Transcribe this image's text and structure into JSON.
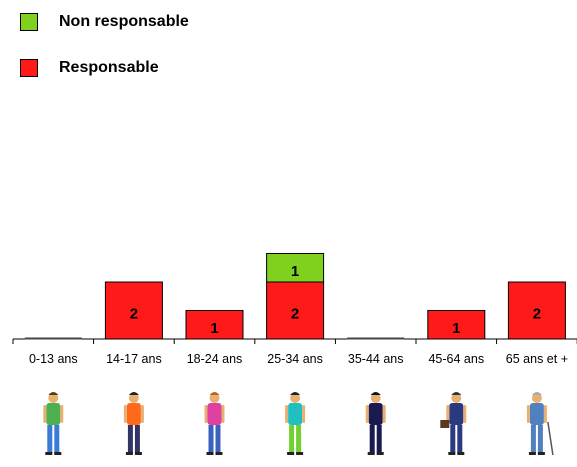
{
  "chart_data": {
    "type": "bar",
    "stacked": true,
    "categories": [
      "0-13 ans",
      "14-17 ans",
      "18-24 ans",
      "25-34 ans",
      "35-44 ans",
      "45-64 ans",
      "65 ans et +"
    ],
    "series": [
      {
        "name": "Responsable",
        "color": "#ff1a1a",
        "values": [
          0,
          2,
          1,
          2,
          0,
          1,
          2
        ]
      },
      {
        "name": "Non responsable",
        "color": "#80d020",
        "values": [
          0,
          0,
          0,
          1,
          0,
          0,
          0
        ]
      }
    ],
    "legend": "top-left",
    "grid": false
  },
  "legend_order": [
    "Non responsable",
    "Responsable"
  ],
  "figure_icons": [
    "child-running-icon",
    "teen-backpack-icon",
    "young-woman-icon",
    "man-green-pants-icon",
    "woman-suit-icon",
    "businessman-briefcase-icon",
    "elderly-man-cane-icon"
  ]
}
